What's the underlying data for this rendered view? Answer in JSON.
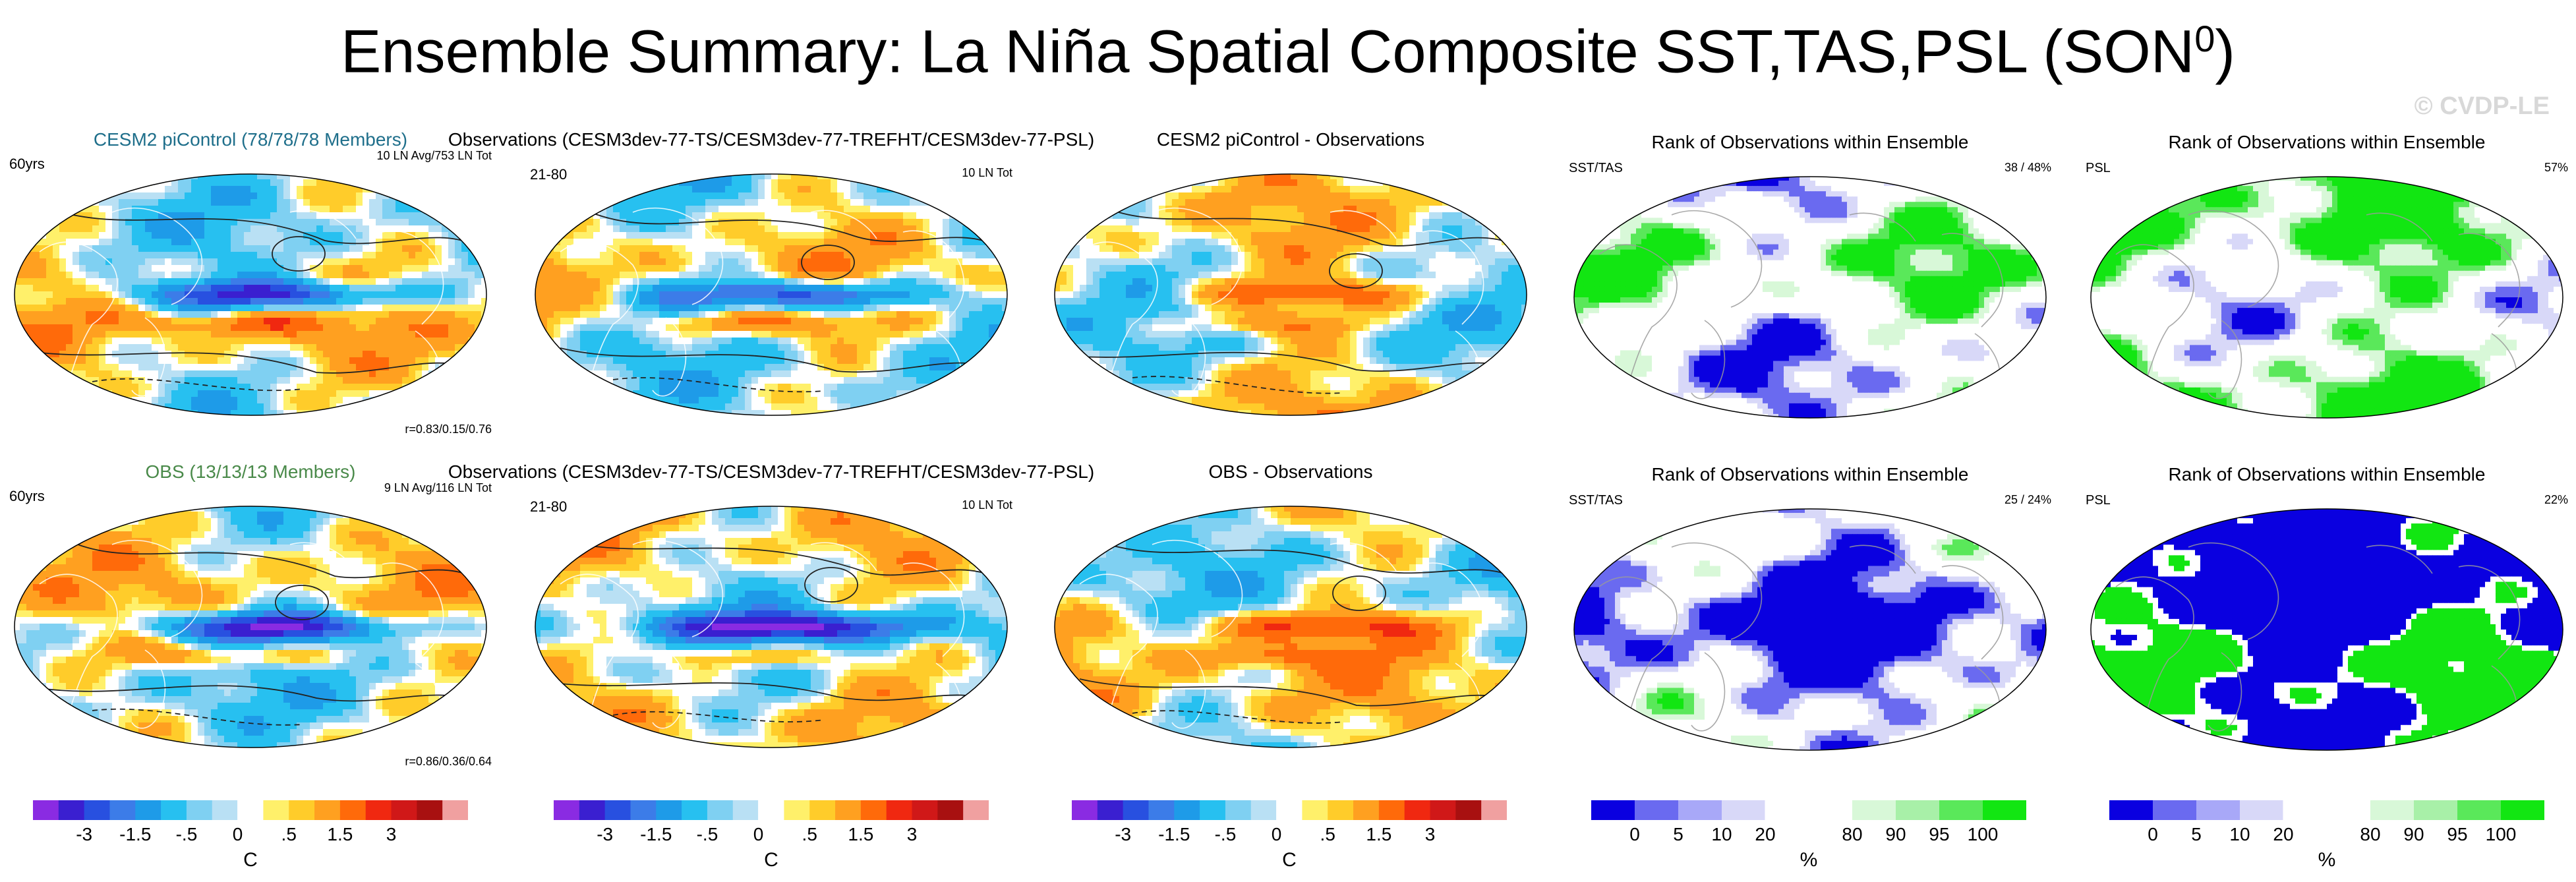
{
  "title_main": "Ensemble Summary: La Niña Spatial Composite SST,TAS,PSL (SON",
  "title_sup": "0",
  "title_close": ")",
  "watermark": "© CVDP-LE",
  "panels": {
    "r1c1": {
      "title": "CESM2 piControl (78/78/78 Members)",
      "title_color": "#1f6f8b",
      "left": "60yrs",
      "right": "10 LN Avg/753 LN Tot",
      "bottom": "r=0.83/0.15/0.76"
    },
    "r1c2": {
      "title": "Observations (CESM3dev-77-TS/CESM3dev-77-TREFHT/CESM3dev-77-PSL)",
      "left": "21-80",
      "right": "10 LN Tot"
    },
    "r1c3": {
      "title": "CESM2 piControl - Observations"
    },
    "r1c4": {
      "title": "Rank of Observations within Ensemble",
      "left": "SST/TAS",
      "right": "38 /  48%"
    },
    "r1c5": {
      "title": "Rank of Observations within Ensemble",
      "left": "PSL",
      "right": "57%"
    },
    "r2c1": {
      "title": "OBS (13/13/13 Members)",
      "title_color": "#4a8a4a",
      "left": "60yrs",
      "right": "9 LN Avg/116 LN Tot",
      "bottom": "r=0.86/0.36/0.64"
    },
    "r2c2": {
      "title": "Observations (CESM3dev-77-TS/CESM3dev-77-TREFHT/CESM3dev-77-PSL)",
      "left": "21-80",
      "right": "10 LN Tot"
    },
    "r2c3": {
      "title": "OBS - Observations"
    },
    "r2c4": {
      "title": "Rank of Observations within Ensemble",
      "left": "SST/TAS",
      "right": "25 /  24%"
    },
    "r2c5": {
      "title": "Rank of Observations within Ensemble",
      "left": "PSL",
      "right": "22%"
    }
  },
  "colorbars": {
    "temp": {
      "unit": "C",
      "tick_labels": [
        "-3",
        "-1.5",
        "-.5",
        "0",
        ".5",
        "1.5",
        "3"
      ],
      "colors": [
        "#8a2be2",
        "#3a1fd0",
        "#2850e0",
        "#3c7ce8",
        "#1e9be8",
        "#27c0f0",
        "#7fd0f2",
        "#b9e0f4",
        "#ffffff",
        "#fff06a",
        "#ffcc2a",
        "#ffa020",
        "#ff6a0a",
        "#f02810",
        "#d01818",
        "#a81010",
        "#f0a0a0"
      ]
    },
    "rank": {
      "unit": "%",
      "tick_labels": [
        "0",
        "5",
        "10",
        "20",
        "80",
        "90",
        "95",
        "100"
      ],
      "colors": [
        "#0a00e0",
        "#6a6af0",
        "#a8a8f8",
        "#d8d8f8",
        "#ffffff",
        "#ffffff",
        "#d8f8d8",
        "#a8f0a8",
        "#5ae85a",
        "#12e612"
      ]
    }
  },
  "chart_data": [
    {
      "type": "heatmap",
      "title": "CESM2 piControl (78/78/78 Members)",
      "field": "SST/TAS composite with PSL contours",
      "units": "C",
      "levels": [
        -3,
        -1.5,
        -0.5,
        0,
        0.5,
        1.5,
        3
      ],
      "pattern_correlation": "0.83/0.15/0.76"
    },
    {
      "type": "heatmap",
      "title": "Observations (CESM3dev-77-TS/CESM3dev-77-TREFHT/CESM3dev-77-PSL)",
      "field": "SST/TAS composite with PSL contours",
      "units": "C"
    },
    {
      "type": "heatmap",
      "title": "CESM2 piControl - Observations",
      "field": "difference",
      "units": "C"
    },
    {
      "type": "heatmap",
      "title": "Rank of Observations within Ensemble",
      "field": "SST/TAS rank",
      "units": "%",
      "levels": [
        0,
        5,
        10,
        20,
        80,
        90,
        95,
        100
      ]
    },
    {
      "type": "heatmap",
      "title": "Rank of Observations within Ensemble",
      "field": "PSL rank",
      "units": "%"
    },
    {
      "type": "heatmap",
      "title": "OBS (13/13/13 Members)",
      "field": "SST/TAS composite with PSL contours",
      "units": "C",
      "pattern_correlation": "0.86/0.36/0.64"
    },
    {
      "type": "heatmap",
      "title": "Observations (CESM3dev-77-TS/CESM3dev-77-TREFHT/CESM3dev-77-PSL)",
      "field": "SST/TAS composite with PSL contours",
      "units": "C"
    },
    {
      "type": "heatmap",
      "title": "OBS - Observations",
      "field": "difference",
      "units": "C"
    },
    {
      "type": "heatmap",
      "title": "Rank of Observations within Ensemble",
      "field": "SST/TAS rank",
      "units": "%"
    },
    {
      "type": "heatmap",
      "title": "Rank of Observations within Ensemble",
      "field": "PSL rank",
      "units": "%"
    }
  ]
}
